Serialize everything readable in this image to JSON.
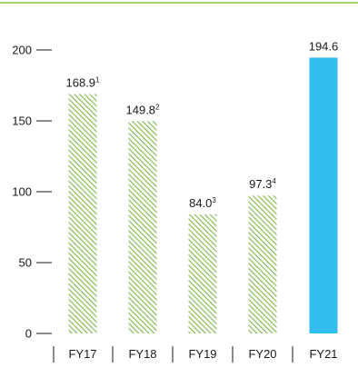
{
  "chart_data": {
    "type": "bar",
    "title": "",
    "xlabel": "",
    "ylabel": "",
    "ylim": [
      0,
      200
    ],
    "y_ticks": [
      0,
      50,
      100,
      150,
      200
    ],
    "y_tick_labels": [
      "0",
      "50",
      "100",
      "150",
      "200"
    ],
    "categories": [
      "FY17",
      "FY18",
      "FY19",
      "FY20",
      "FY21"
    ],
    "values": [
      168.9,
      149.8,
      84.0,
      97.3,
      194.6
    ],
    "value_labels": [
      {
        "text": "168.9",
        "sup": "1"
      },
      {
        "text": "149.8",
        "sup": "2"
      },
      {
        "text": "84.0",
        "sup": "3"
      },
      {
        "text": "97.3",
        "sup": "4"
      },
      {
        "text": "194.6",
        "sup": ""
      }
    ],
    "bar_styles": [
      "hatched",
      "hatched",
      "hatched",
      "hatched",
      "solid"
    ],
    "grid": false,
    "legend": "none"
  },
  "colors": {
    "top_rule": "#8cc63f",
    "hatch": "#7ab648",
    "solid_bar": "#33bdef",
    "axis": "#1a1a1a",
    "text": "#1a1a1a"
  }
}
